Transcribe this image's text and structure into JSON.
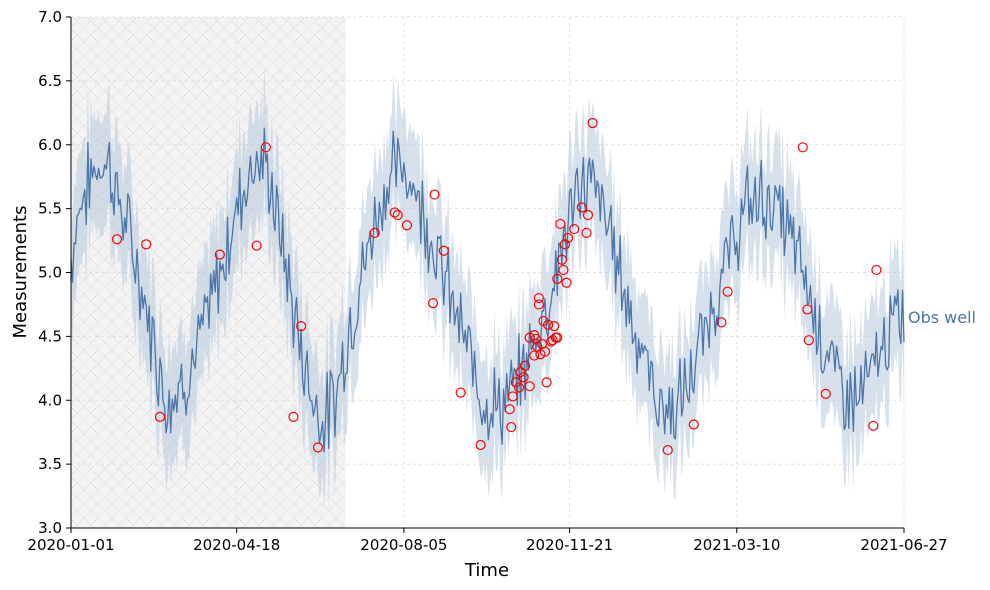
{
  "chart_data": {
    "type": "line",
    "title": "",
    "xlabel": "Time",
    "ylabel": "Measurements",
    "ylim": [
      3.0,
      7.0
    ],
    "yticks": [
      3.0,
      3.5,
      4.0,
      4.5,
      5.0,
      5.5,
      6.0,
      6.5,
      7.0
    ],
    "ytick_labels": [
      "3.0",
      "3.5",
      "4.0",
      "4.5",
      "5.0",
      "5.5",
      "6.0",
      "6.5",
      "7.0"
    ],
    "xlim_days": [
      0,
      543
    ],
    "xticks_days": [
      0,
      108,
      217,
      325,
      434,
      543
    ],
    "xtick_labels": [
      "2020-01-01",
      "2020-04-18",
      "2020-08-05",
      "2020-11-21",
      "2021-03-10",
      "2021-06-27"
    ],
    "grid": true,
    "shaded_region": {
      "start_day": 0,
      "end_day": 179
    },
    "band_halfwidth": 0.45,
    "series": [
      {
        "name": "Obs well",
        "label": "Obs well",
        "color": "#4a76a8",
        "band_color": "#b6c8dd",
        "keypoints": [
          {
            "day": 0,
            "value": 5.1
          },
          {
            "day": 5,
            "value": 5.5
          },
          {
            "day": 15,
            "value": 5.8
          },
          {
            "day": 24,
            "value": 5.9
          },
          {
            "day": 30,
            "value": 5.6
          },
          {
            "day": 40,
            "value": 5.2
          },
          {
            "day": 47,
            "value": 4.8
          },
          {
            "day": 55,
            "value": 4.4
          },
          {
            "day": 62,
            "value": 4.0
          },
          {
            "day": 70,
            "value": 4.1
          },
          {
            "day": 80,
            "value": 4.3
          },
          {
            "day": 90,
            "value": 4.7
          },
          {
            "day": 100,
            "value": 5.1
          },
          {
            "day": 110,
            "value": 5.6
          },
          {
            "day": 120,
            "value": 5.9
          },
          {
            "day": 128,
            "value": 5.8
          },
          {
            "day": 138,
            "value": 5.2
          },
          {
            "day": 148,
            "value": 4.5
          },
          {
            "day": 158,
            "value": 4.0
          },
          {
            "day": 165,
            "value": 3.85
          },
          {
            "day": 172,
            "value": 4.0
          },
          {
            "day": 180,
            "value": 4.5
          },
          {
            "day": 190,
            "value": 5.0
          },
          {
            "day": 200,
            "value": 5.5
          },
          {
            "day": 210,
            "value": 5.8
          },
          {
            "day": 220,
            "value": 5.8
          },
          {
            "day": 232,
            "value": 5.4
          },
          {
            "day": 245,
            "value": 4.9
          },
          {
            "day": 258,
            "value": 4.4
          },
          {
            "day": 270,
            "value": 4.0
          },
          {
            "day": 280,
            "value": 3.95
          },
          {
            "day": 290,
            "value": 4.1
          },
          {
            "day": 300,
            "value": 4.4
          },
          {
            "day": 312,
            "value": 4.8
          },
          {
            "day": 322,
            "value": 5.3
          },
          {
            "day": 332,
            "value": 5.7
          },
          {
            "day": 340,
            "value": 5.7
          },
          {
            "day": 352,
            "value": 5.3
          },
          {
            "day": 362,
            "value": 4.8
          },
          {
            "day": 372,
            "value": 4.4
          },
          {
            "day": 382,
            "value": 4.0
          },
          {
            "day": 392,
            "value": 3.9
          },
          {
            "day": 402,
            "value": 4.1
          },
          {
            "day": 415,
            "value": 4.6
          },
          {
            "day": 428,
            "value": 5.1
          },
          {
            "day": 440,
            "value": 5.5
          },
          {
            "day": 450,
            "value": 5.6
          },
          {
            "day": 460,
            "value": 5.5
          },
          {
            "day": 472,
            "value": 5.2
          },
          {
            "day": 482,
            "value": 4.8
          },
          {
            "day": 492,
            "value": 4.4
          },
          {
            "day": 502,
            "value": 4.1
          },
          {
            "day": 512,
            "value": 4.0
          },
          {
            "day": 522,
            "value": 4.2
          },
          {
            "day": 532,
            "value": 4.5
          },
          {
            "day": 543,
            "value": 4.7
          }
        ]
      }
    ],
    "observations": [
      {
        "day": 30,
        "value": 5.26
      },
      {
        "day": 49,
        "value": 5.22
      },
      {
        "day": 58,
        "value": 3.87
      },
      {
        "day": 97,
        "value": 5.14
      },
      {
        "day": 121,
        "value": 5.21
      },
      {
        "day": 127,
        "value": 5.98
      },
      {
        "day": 145,
        "value": 3.87
      },
      {
        "day": 150,
        "value": 4.58
      },
      {
        "day": 161,
        "value": 3.63
      },
      {
        "day": 198,
        "value": 5.31
      },
      {
        "day": 211,
        "value": 5.47
      },
      {
        "day": 213,
        "value": 5.45
      },
      {
        "day": 219,
        "value": 5.37
      },
      {
        "day": 236,
        "value": 4.76
      },
      {
        "day": 237,
        "value": 5.61
      },
      {
        "day": 243,
        "value": 5.17
      },
      {
        "day": 254,
        "value": 4.06
      },
      {
        "day": 267,
        "value": 3.65
      },
      {
        "day": 286,
        "value": 3.93
      },
      {
        "day": 287,
        "value": 3.79
      },
      {
        "day": 288,
        "value": 4.03
      },
      {
        "day": 290,
        "value": 4.14
      },
      {
        "day": 292,
        "value": 4.1
      },
      {
        "day": 293,
        "value": 4.22
      },
      {
        "day": 295,
        "value": 4.18
      },
      {
        "day": 296,
        "value": 4.27
      },
      {
        "day": 299,
        "value": 4.49
      },
      {
        "day": 303,
        "value": 4.48
      },
      {
        "day": 304,
        "value": 4.42
      },
      {
        "day": 306,
        "value": 4.36
      },
      {
        "day": 308,
        "value": 4.62
      },
      {
        "day": 309,
        "value": 4.38
      },
      {
        "day": 310,
        "value": 4.14
      },
      {
        "day": 311,
        "value": 4.59
      },
      {
        "day": 313,
        "value": 4.46
      },
      {
        "day": 314,
        "value": 4.47
      },
      {
        "day": 315,
        "value": 4.58
      },
      {
        "day": 316,
        "value": 4.49
      },
      {
        "day": 317,
        "value": 4.95
      },
      {
        "day": 319,
        "value": 5.38
      },
      {
        "day": 320,
        "value": 5.1
      },
      {
        "day": 321,
        "value": 5.02
      },
      {
        "day": 322,
        "value": 5.22
      },
      {
        "day": 323,
        "value": 4.92
      },
      {
        "day": 324,
        "value": 5.27
      },
      {
        "day": 328,
        "value": 5.34
      },
      {
        "day": 333,
        "value": 5.51
      },
      {
        "day": 337,
        "value": 5.45
      },
      {
        "day": 340,
        "value": 6.17
      },
      {
        "day": 389,
        "value": 3.61
      },
      {
        "day": 406,
        "value": 3.81
      },
      {
        "day": 424,
        "value": 4.61
      },
      {
        "day": 428,
        "value": 4.85
      },
      {
        "day": 477,
        "value": 5.98
      },
      {
        "day": 480,
        "value": 4.71
      },
      {
        "day": 481,
        "value": 4.47
      },
      {
        "day": 492,
        "value": 4.05
      },
      {
        "day": 523,
        "value": 3.8
      },
      {
        "day": 525,
        "value": 5.02
      },
      {
        "day": 299,
        "value": 4.11
      },
      {
        "day": 302,
        "value": 4.35
      },
      {
        "day": 302,
        "value": 4.51
      },
      {
        "day": 305,
        "value": 4.8
      },
      {
        "day": 305,
        "value": 4.75
      },
      {
        "day": 307,
        "value": 4.44
      },
      {
        "day": 317,
        "value": 4.49
      },
      {
        "day": 336,
        "value": 5.31
      }
    ]
  }
}
